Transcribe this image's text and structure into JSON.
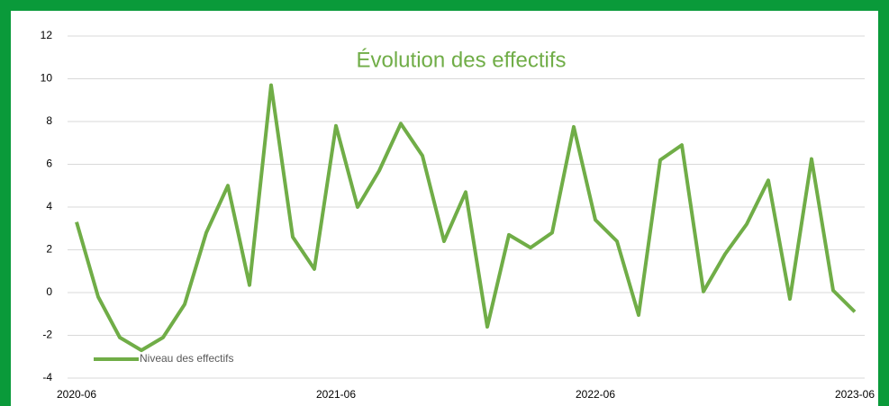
{
  "chart_data": {
    "type": "line",
    "title": "Évolution des effectifs",
    "categories": [
      "2020-06",
      null,
      null,
      null,
      null,
      null,
      null,
      null,
      null,
      null,
      null,
      null,
      "2021-06",
      null,
      null,
      null,
      null,
      null,
      null,
      null,
      null,
      null,
      null,
      null,
      "2022-06",
      null,
      null,
      null,
      null,
      null,
      null,
      null,
      null,
      null,
      null,
      null,
      "2023-06"
    ],
    "series": [
      {
        "name": "Niveau des effectifs",
        "color": "#70ad47",
        "values": [
          3.3,
          -0.2,
          -2.1,
          -2.7,
          -2.1,
          -0.55,
          2.8,
          5.0,
          0.35,
          9.7,
          2.6,
          1.1,
          7.8,
          4.0,
          5.7,
          7.9,
          6.4,
          2.4,
          4.7,
          -1.6,
          2.7,
          2.1,
          2.8,
          7.75,
          3.4,
          2.4,
          -1.05,
          6.2,
          6.9,
          0.05,
          1.8,
          3.2,
          5.25,
          -0.3,
          6.25,
          0.1,
          -0.9
        ]
      }
    ],
    "ylim": [
      -4,
      12
    ],
    "yticks": [
      -4,
      -2,
      0,
      2,
      4,
      6,
      8,
      10,
      12
    ],
    "grid": true,
    "legend": "lower-left"
  }
}
